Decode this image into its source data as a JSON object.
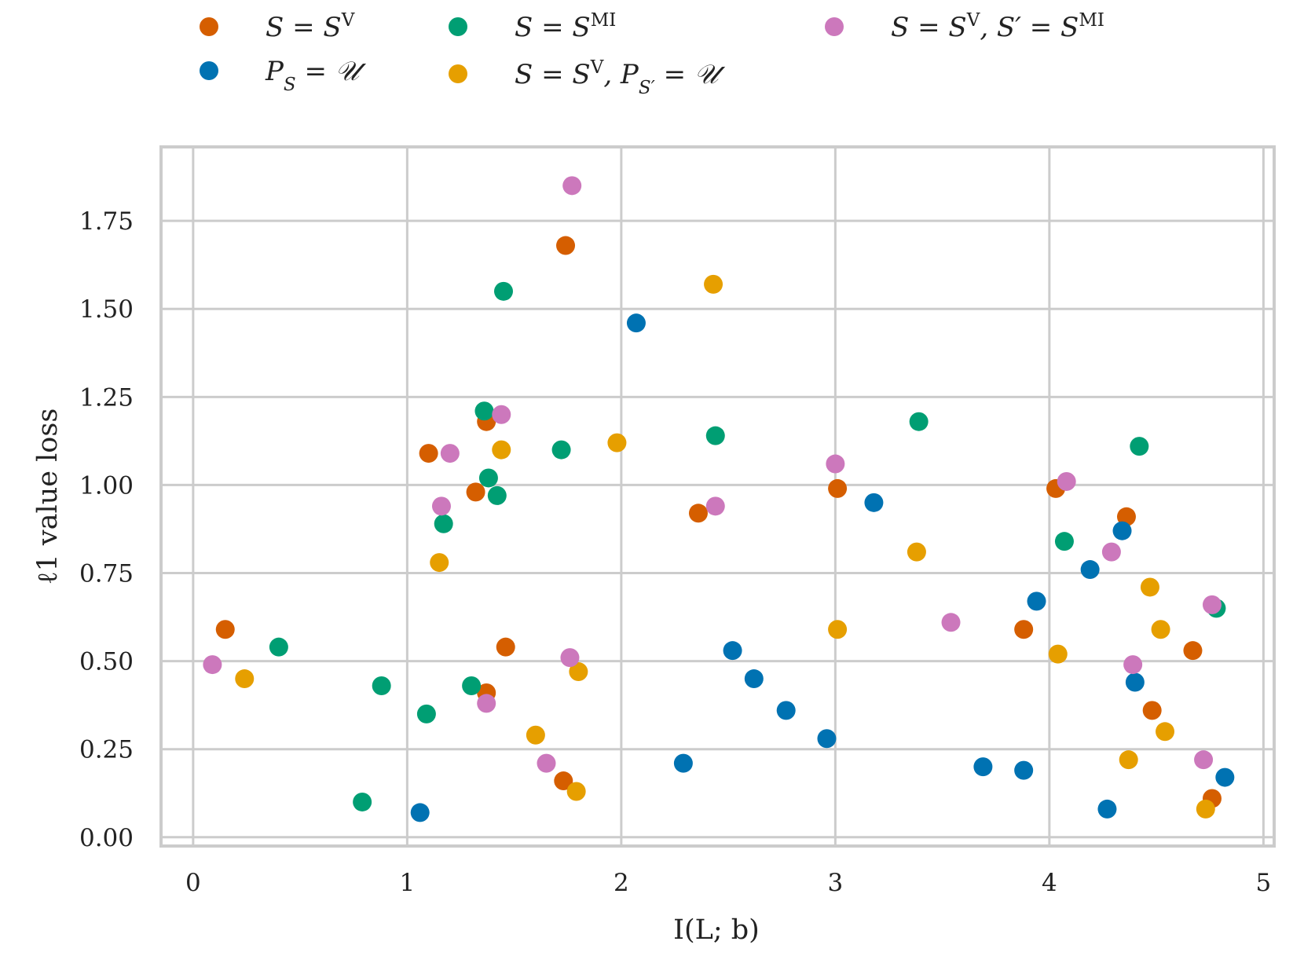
{
  "chart_data": {
    "type": "scatter",
    "xlabel": "I(L; b)",
    "ylabel": "ℓ1 value loss",
    "xlim": [
      -0.15,
      5.05
    ],
    "ylim": [
      -0.025,
      1.96
    ],
    "xticks": [
      0,
      1,
      2,
      3,
      4,
      5
    ],
    "xtick_labels": [
      "0",
      "1",
      "2",
      "3",
      "4",
      "5"
    ],
    "yticks": [
      0.0,
      0.25,
      0.5,
      0.75,
      1.0,
      1.25,
      1.5,
      1.75
    ],
    "ytick_labels": [
      "0.00",
      "0.25",
      "0.50",
      "0.75",
      "1.00",
      "1.25",
      "1.50",
      "1.75"
    ],
    "grid": true,
    "legend_position": "top",
    "series": [
      {
        "name": "S = S^V",
        "color": "#d55e00",
        "x": [
          0.15,
          1.1,
          1.32,
          1.37,
          1.37,
          1.46,
          1.73,
          1.74,
          2.36,
          3.01,
          3.88,
          4.03,
          4.36,
          4.48,
          4.67,
          4.76
        ],
        "y": [
          0.59,
          1.09,
          0.98,
          1.18,
          0.41,
          0.54,
          0.16,
          1.68,
          0.92,
          0.99,
          0.59,
          0.99,
          0.91,
          0.36,
          0.53,
          0.11
        ]
      },
      {
        "name": "P_S = U",
        "color": "#0072b2",
        "x": [
          1.06,
          2.07,
          2.29,
          2.52,
          2.62,
          2.77,
          2.96,
          3.18,
          3.69,
          3.88,
          3.94,
          4.19,
          4.27,
          4.34,
          4.4,
          4.82
        ],
        "y": [
          0.07,
          1.46,
          0.21,
          0.53,
          0.45,
          0.36,
          0.28,
          0.95,
          0.2,
          0.19,
          0.67,
          0.76,
          0.08,
          0.87,
          0.44,
          0.17
        ]
      },
      {
        "name": "S = S^MI",
        "color": "#009e73",
        "x": [
          0.4,
          0.79,
          0.88,
          1.09,
          1.17,
          1.3,
          1.36,
          1.38,
          1.42,
          1.45,
          1.72,
          2.44,
          3.39,
          4.07,
          4.42,
          4.78
        ],
        "y": [
          0.54,
          0.1,
          0.43,
          0.35,
          0.89,
          0.43,
          1.21,
          1.02,
          0.97,
          1.55,
          1.1,
          1.14,
          1.18,
          0.84,
          1.11,
          0.65
        ]
      },
      {
        "name": "S = S^V, P_S' = U",
        "color": "#e69f00",
        "x": [
          0.24,
          1.15,
          1.44,
          1.6,
          1.79,
          1.8,
          1.98,
          2.43,
          3.01,
          3.38,
          4.04,
          4.37,
          4.47,
          4.52,
          4.54,
          4.73
        ],
        "y": [
          0.45,
          0.78,
          1.1,
          0.29,
          0.13,
          0.47,
          1.12,
          1.57,
          0.59,
          0.81,
          0.52,
          0.22,
          0.71,
          0.59,
          0.3,
          0.08
        ]
      },
      {
        "name": "S = S^V, S' = S^MI",
        "color": "#cc78bc",
        "x": [
          0.09,
          1.16,
          1.2,
          1.37,
          1.44,
          1.65,
          1.76,
          1.77,
          2.44,
          3.0,
          3.54,
          4.08,
          4.29,
          4.39,
          4.72,
          4.76
        ],
        "y": [
          0.49,
          0.94,
          1.09,
          0.38,
          1.2,
          0.21,
          0.51,
          1.85,
          0.94,
          1.06,
          0.61,
          1.01,
          0.81,
          0.49,
          0.22,
          0.66
        ]
      }
    ]
  },
  "legend": {
    "entries": [
      {
        "label": "S = S",
        "sup": "V",
        "sub": "",
        "tail": "",
        "tail_sup": "",
        "tail_sub": "",
        "tail_end": "",
        "color": "#d55e00"
      },
      {
        "label": "P",
        "sup": "",
        "sub": "S",
        "tail": " = 𝒰",
        "tail_sup": "",
        "tail_sub": "",
        "tail_end": "",
        "color": "#0072b2"
      },
      {
        "label": "S = S",
        "sup": "MI",
        "sub": "",
        "tail": "",
        "tail_sup": "",
        "tail_sub": "",
        "tail_end": "",
        "color": "#009e73"
      },
      {
        "label": "S = S",
        "sup": "V",
        "sub": "",
        "tail": ", P",
        "tail_sup": "",
        "tail_sub": "S′",
        "tail_end": " = 𝒰",
        "color": "#e69f00"
      },
      {
        "label": "S = S",
        "sup": "V",
        "sub": "",
        "tail": ", S′ = S",
        "tail_sup": "MI",
        "tail_sub": "",
        "tail_end": "",
        "color": "#cc78bc"
      }
    ]
  }
}
